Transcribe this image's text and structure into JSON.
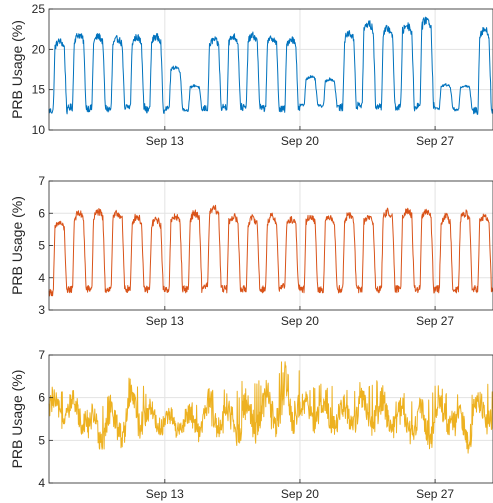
{
  "chart_data": [
    {
      "type": "line",
      "title": "",
      "xlabel": "",
      "ylabel": "PRB Usage (%)",
      "ylim": [
        10,
        25
      ],
      "yticks": [
        10,
        15,
        20,
        25
      ],
      "xlim": [
        "Sep 7",
        "Sep 30"
      ],
      "xticks": [
        {
          "day": 13,
          "label": "Sep 13"
        },
        {
          "day": 20,
          "label": "Sep 20"
        },
        {
          "day": 27,
          "label": "Sep 27"
        }
      ],
      "grid": true,
      "series": [
        {
          "color": "#0072BD",
          "daily": [
            {
              "day": 7,
              "peak": 21.0,
              "trough": 12.2
            },
            {
              "day": 8,
              "peak": 21.8,
              "trough": 12.6
            },
            {
              "day": 9,
              "peak": 21.6,
              "trough": 12.5
            },
            {
              "day": 10,
              "peak": 21.3,
              "trough": 12.4
            },
            {
              "day": 11,
              "peak": 21.5,
              "trough": 12.7
            },
            {
              "day": 12,
              "peak": 21.6,
              "trough": 12.3
            },
            {
              "day": 13,
              "peak": 17.8,
              "trough": 12.6
            },
            {
              "day": 14,
              "peak": 15.5,
              "trough": 12.4
            },
            {
              "day": 15,
              "peak": 21.2,
              "trough": 12.5
            },
            {
              "day": 16,
              "peak": 21.6,
              "trough": 12.7
            },
            {
              "day": 17,
              "peak": 21.7,
              "trough": 12.6
            },
            {
              "day": 18,
              "peak": 21.4,
              "trough": 12.5
            },
            {
              "day": 19,
              "peak": 21.3,
              "trough": 12.4
            },
            {
              "day": 20,
              "peak": 16.6,
              "trough": 13.0
            },
            {
              "day": 21,
              "peak": 16.3,
              "trough": 12.9
            },
            {
              "day": 22,
              "peak": 22.0,
              "trough": 12.6
            },
            {
              "day": 23,
              "peak": 23.2,
              "trough": 12.8
            },
            {
              "day": 24,
              "peak": 22.6,
              "trough": 12.7
            },
            {
              "day": 25,
              "peak": 23.0,
              "trough": 12.6
            },
            {
              "day": 26,
              "peak": 23.7,
              "trough": 12.8
            },
            {
              "day": 27,
              "peak": 15.6,
              "trough": 12.6
            },
            {
              "day": 28,
              "peak": 15.5,
              "trough": 12.4
            },
            {
              "day": 29,
              "peak": 22.5,
              "trough": 12.2
            }
          ]
        }
      ]
    },
    {
      "type": "line",
      "title": "",
      "xlabel": "",
      "ylabel": "PRB Usage (%)",
      "ylim": [
        3,
        7
      ],
      "yticks": [
        3,
        4,
        5,
        6,
        7
      ],
      "xlim": [
        "Sep 7",
        "Sep 30"
      ],
      "xticks": [
        {
          "day": 13,
          "label": "Sep 13"
        },
        {
          "day": 20,
          "label": "Sep 20"
        },
        {
          "day": 27,
          "label": "Sep 27"
        }
      ],
      "grid": true,
      "series": [
        {
          "color": "#D95319",
          "daily": [
            {
              "day": 7,
              "peak": 5.7,
              "trough": 3.5
            },
            {
              "day": 8,
              "peak": 6.0,
              "trough": 3.6
            },
            {
              "day": 9,
              "peak": 6.05,
              "trough": 3.6
            },
            {
              "day": 10,
              "peak": 6.0,
              "trough": 3.6
            },
            {
              "day": 11,
              "peak": 5.9,
              "trough": 3.6
            },
            {
              "day": 12,
              "peak": 5.8,
              "trough": 3.6
            },
            {
              "day": 13,
              "peak": 5.9,
              "trough": 3.6
            },
            {
              "day": 14,
              "peak": 6.0,
              "trough": 3.6
            },
            {
              "day": 15,
              "peak": 6.15,
              "trough": 3.7
            },
            {
              "day": 16,
              "peak": 5.9,
              "trough": 3.6
            },
            {
              "day": 17,
              "peak": 5.85,
              "trough": 3.6
            },
            {
              "day": 18,
              "peak": 5.9,
              "trough": 3.6
            },
            {
              "day": 19,
              "peak": 5.8,
              "trough": 3.7
            },
            {
              "day": 20,
              "peak": 5.9,
              "trough": 3.6
            },
            {
              "day": 21,
              "peak": 5.9,
              "trough": 3.6
            },
            {
              "day": 22,
              "peak": 5.95,
              "trough": 3.6
            },
            {
              "day": 23,
              "peak": 5.9,
              "trough": 3.6
            },
            {
              "day": 24,
              "peak": 6.05,
              "trough": 3.6
            },
            {
              "day": 25,
              "peak": 6.1,
              "trough": 3.6
            },
            {
              "day": 26,
              "peak": 6.05,
              "trough": 3.6
            },
            {
              "day": 27,
              "peak": 5.9,
              "trough": 3.6
            },
            {
              "day": 28,
              "peak": 6.0,
              "trough": 3.6
            },
            {
              "day": 29,
              "peak": 5.9,
              "trough": 3.6
            }
          ]
        }
      ]
    },
    {
      "type": "line",
      "title": "",
      "xlabel": "",
      "ylabel": "PRB Usage (%)",
      "ylim": [
        4,
        7
      ],
      "yticks": [
        4,
        5,
        6,
        7
      ],
      "xlim": [
        "Sep 7",
        "Sep 30"
      ],
      "xticks": [
        {
          "day": 13,
          "label": "Sep 13"
        },
        {
          "day": 20,
          "label": "Sep 20"
        },
        {
          "day": 27,
          "label": "Sep 27"
        }
      ],
      "grid": true,
      "series": [
        {
          "color": "#EDB120",
          "daily": [
            {
              "day": 7,
              "peak": 6.3,
              "trough": 5.4
            },
            {
              "day": 8,
              "peak": 6.3,
              "trough": 5.3
            },
            {
              "day": 9,
              "peak": 6.0,
              "trough": 4.9
            },
            {
              "day": 10,
              "peak": 6.1,
              "trough": 5.0
            },
            {
              "day": 11,
              "peak": 6.5,
              "trough": 5.2
            },
            {
              "day": 12,
              "peak": 6.1,
              "trough": 5.2
            },
            {
              "day": 13,
              "peak": 5.9,
              "trough": 5.1
            },
            {
              "day": 14,
              "peak": 6.0,
              "trough": 5.1
            },
            {
              "day": 15,
              "peak": 6.4,
              "trough": 5.1
            },
            {
              "day": 16,
              "peak": 6.3,
              "trough": 5.0
            },
            {
              "day": 17,
              "peak": 6.4,
              "trough": 5.1
            },
            {
              "day": 18,
              "peak": 6.6,
              "trough": 5.2
            },
            {
              "day": 19,
              "peak": 7.0,
              "trough": 5.3
            },
            {
              "day": 20,
              "peak": 6.3,
              "trough": 5.3
            },
            {
              "day": 21,
              "peak": 6.4,
              "trough": 5.2
            },
            {
              "day": 22,
              "peak": 6.3,
              "trough": 5.2
            },
            {
              "day": 23,
              "peak": 6.4,
              "trough": 5.3
            },
            {
              "day": 24,
              "peak": 6.4,
              "trough": 5.2
            },
            {
              "day": 25,
              "peak": 6.2,
              "trough": 5.0
            },
            {
              "day": 26,
              "peak": 6.2,
              "trough": 5.0
            },
            {
              "day": 27,
              "peak": 6.3,
              "trough": 5.2
            },
            {
              "day": 28,
              "peak": 6.1,
              "trough": 4.9
            },
            {
              "day": 29,
              "peak": 6.4,
              "trough": 5.3
            }
          ]
        }
      ]
    }
  ]
}
